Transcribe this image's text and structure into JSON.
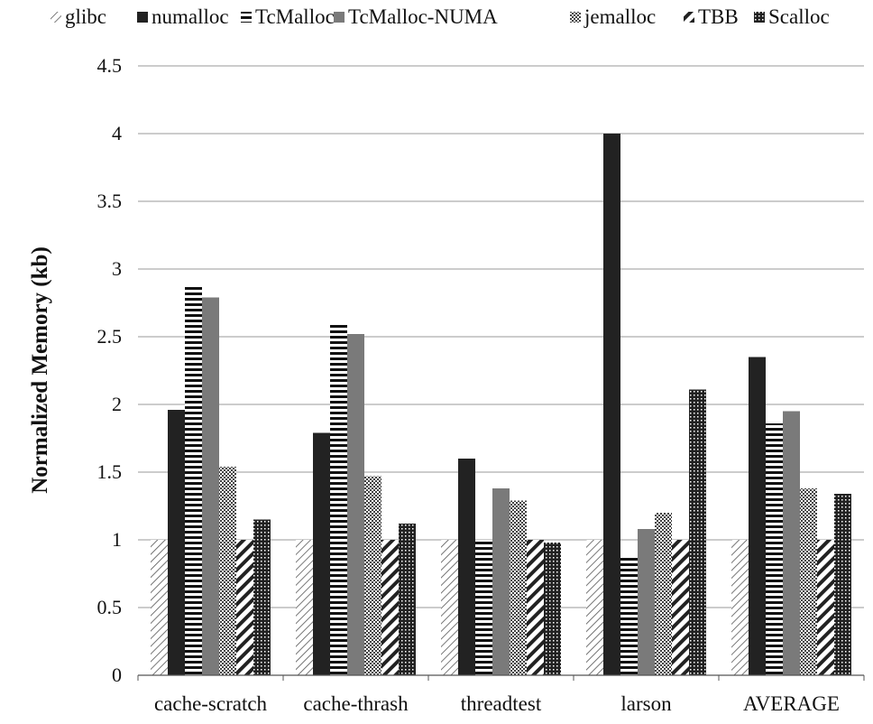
{
  "chart_data": {
    "type": "bar",
    "title": "",
    "xlabel": "",
    "ylabel": "Normalized Memory (kb)",
    "ylim": [
      0,
      4.5
    ],
    "yticks": [
      "0",
      "0.5",
      "1",
      "1.5",
      "2",
      "2.5",
      "3",
      "3.5",
      "4",
      "4.5"
    ],
    "grid": "horizontal",
    "legend_position": "top",
    "categories": [
      "cache-scratch",
      "cache-thrash",
      "threadtest",
      "larson",
      "AVERAGE"
    ],
    "series": [
      {
        "name": "glibc",
        "pattern": "light-diagonal",
        "values": [
          1.0,
          1.0,
          1.0,
          1.0,
          1.0
        ]
      },
      {
        "name": "numalloc",
        "pattern": "solid-dark",
        "values": [
          1.96,
          1.79,
          1.6,
          4.0,
          2.35
        ]
      },
      {
        "name": "TcMalloc",
        "pattern": "horizontal-stripes",
        "values": [
          2.87,
          2.6,
          1.0,
          0.88,
          1.86
        ]
      },
      {
        "name": "TcMalloc-NUMA",
        "pattern": "solid-gray",
        "values": [
          2.79,
          2.52,
          1.38,
          1.08,
          1.95
        ]
      },
      {
        "name": "jemalloc",
        "pattern": "checker",
        "values": [
          1.54,
          1.47,
          1.29,
          1.2,
          1.38
        ]
      },
      {
        "name": "TBB",
        "pattern": "wide-diagonal",
        "values": [
          1.0,
          1.0,
          1.0,
          1.0,
          1.0
        ]
      },
      {
        "name": "Scalloc",
        "pattern": "dots",
        "values": [
          1.15,
          1.12,
          0.98,
          2.11,
          1.34
        ]
      }
    ],
    "colors": {
      "dark": "#222222",
      "gray": "#7a7a7a",
      "grid": "#999999"
    }
  }
}
